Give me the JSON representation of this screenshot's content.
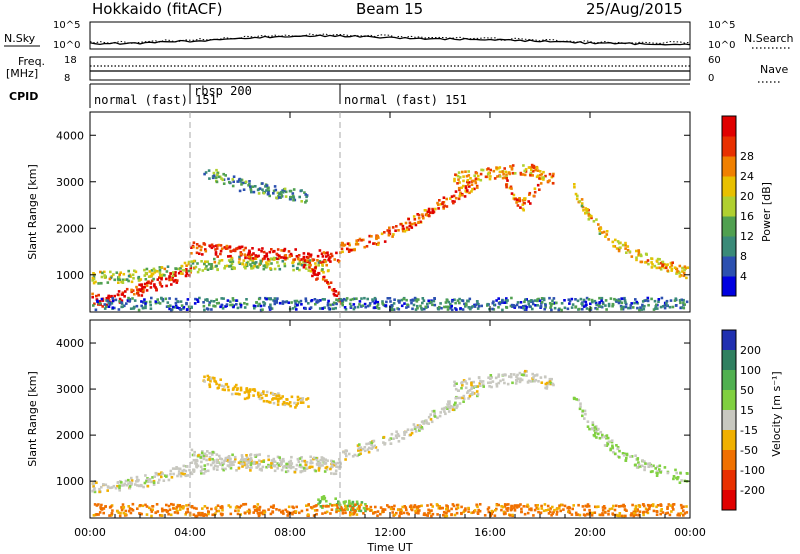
{
  "header": {
    "radar": "Hokkaido (fitACF)",
    "beam": "Beam 15",
    "date": "25/Aug/2015"
  },
  "noise_panel": {
    "left_label": "N.Sky",
    "right_label": "N.Search",
    "ticks_left": [
      "10^5",
      "10^0"
    ],
    "ticks_right": [
      "10^5",
      "10^0"
    ]
  },
  "freq_panel": {
    "left_label_1": "Freq.",
    "left_label_2": "[MHz]",
    "right_label": "Nave",
    "ticks_left": [
      "18",
      "8"
    ],
    "ticks_right": [
      "60",
      "0"
    ]
  },
  "cpid_panel": {
    "label": "CPID",
    "segments": [
      {
        "name": "normal (fast) 151",
        "start_hour": 0,
        "end_hour": 4
      },
      {
        "name": "rbsp 200",
        "start_hour": 4,
        "end_hour": 10
      },
      {
        "name": "normal (fast) 151",
        "start_hour": 10,
        "end_hour": 24
      }
    ]
  },
  "chart_data": [
    {
      "type": "heatmap",
      "title": "",
      "ylabel": "Slant Range [km]",
      "xlim": [
        0,
        24
      ],
      "ylim": [
        200,
        4500
      ],
      "yticks": [
        "1000",
        "2000",
        "3000",
        "4000"
      ],
      "colorbar": {
        "label": "Power [dB]",
        "ticks": [
          "4",
          "8",
          "12",
          "16",
          "20",
          "24",
          "28"
        ],
        "colors": [
          "#0000e0",
          "#2c50b0",
          "#3a8a78",
          "#50a050",
          "#b0d030",
          "#e8c000",
          "#f08000",
          "#e83000",
          "#e00000"
        ]
      },
      "bands": [
        {
          "x": [
            0,
            0.5,
            1.5,
            3,
            4
          ],
          "y": [
            500,
            450,
            600,
            900,
            1100
          ],
          "value": 30
        },
        {
          "x": [
            0,
            2,
            4,
            6,
            8,
            9.5
          ],
          "y": [
            950,
            1000,
            1200,
            1300,
            1250,
            1200
          ],
          "value": 16
        },
        {
          "x": [
            4,
            6,
            8,
            10
          ],
          "y": [
            1600,
            1500,
            1450,
            1400
          ],
          "value": 28
        },
        {
          "x": [
            4.5,
            6,
            7.5,
            8.7
          ],
          "y": [
            3250,
            2950,
            2800,
            2700
          ],
          "value": 10
        },
        {
          "x": [
            8.5,
            9.5,
            10
          ],
          "y": [
            1300,
            800,
            500
          ],
          "value": 28
        },
        {
          "x": [
            10,
            11.5,
            13,
            14.5,
            15.5
          ],
          "y": [
            1600,
            1800,
            2200,
            2700,
            3000
          ],
          "value": 26
        },
        {
          "x": [
            14.5,
            16,
            17.5,
            18.5
          ],
          "y": [
            3100,
            3200,
            3300,
            3100
          ],
          "value": 22
        },
        {
          "x": [
            16.6,
            17.2,
            18
          ],
          "y": [
            3050,
            2500,
            2900
          ],
          "value": 24
        },
        {
          "x": [
            19.3,
            20,
            21,
            22,
            23,
            24
          ],
          "y": [
            2900,
            2200,
            1700,
            1400,
            1200,
            1050
          ],
          "value": 20
        },
        {
          "x": [
            0,
            6,
            12,
            18,
            24
          ],
          "y": [
            400,
            400,
            400,
            400,
            400
          ],
          "value": 8
        }
      ]
    },
    {
      "type": "heatmap",
      "title": "",
      "xlabel": "Time UT",
      "ylabel": "Slant Range [km]",
      "xlim": [
        0,
        24
      ],
      "ylim": [
        200,
        4500
      ],
      "xticks": [
        "00:00",
        "04:00",
        "08:00",
        "12:00",
        "16:00",
        "20:00",
        "00:00"
      ],
      "yticks": [
        "1000",
        "2000",
        "3000",
        "4000"
      ],
      "colorbar": {
        "label": "Velocity [m s⁻¹]",
        "ticks": [
          "200",
          "100",
          "50",
          "15",
          "-15",
          "-50",
          "-100",
          "-200"
        ],
        "colors": [
          "#2030b0",
          "#308060",
          "#50b050",
          "#80d040",
          "#c8c8c0",
          "#f0b000",
          "#f07000",
          "#e83000",
          "#e00000"
        ]
      },
      "bands": [
        {
          "x": [
            0,
            2,
            4,
            6,
            8,
            10
          ],
          "y": [
            900,
            1000,
            1300,
            1400,
            1350,
            1300
          ],
          "value": 0
        },
        {
          "x": [
            4,
            6,
            8,
            10
          ],
          "y": [
            1600,
            1500,
            1450,
            1400
          ],
          "value": 0
        },
        {
          "x": [
            4.5,
            6,
            7.5,
            8.7
          ],
          "y": [
            3250,
            2950,
            2800,
            2700
          ],
          "value": -30
        },
        {
          "x": [
            10,
            11.5,
            13,
            14.5,
            15.5
          ],
          "y": [
            1600,
            1800,
            2200,
            2700,
            3000
          ],
          "value": 0
        },
        {
          "x": [
            14.5,
            16,
            17.5,
            18.5
          ],
          "y": [
            3100,
            3200,
            3300,
            3100
          ],
          "value": 0
        },
        {
          "x": [
            19.3,
            20,
            21,
            22,
            23,
            24
          ],
          "y": [
            2900,
            2200,
            1700,
            1400,
            1200,
            1050
          ],
          "value": 20
        },
        {
          "x": [
            9,
            10,
            11
          ],
          "y": [
            600,
            500,
            450
          ],
          "value": 40
        },
        {
          "x": [
            0,
            6,
            12,
            18,
            24
          ],
          "y": [
            400,
            400,
            400,
            400,
            400
          ],
          "value": -60
        }
      ]
    }
  ]
}
